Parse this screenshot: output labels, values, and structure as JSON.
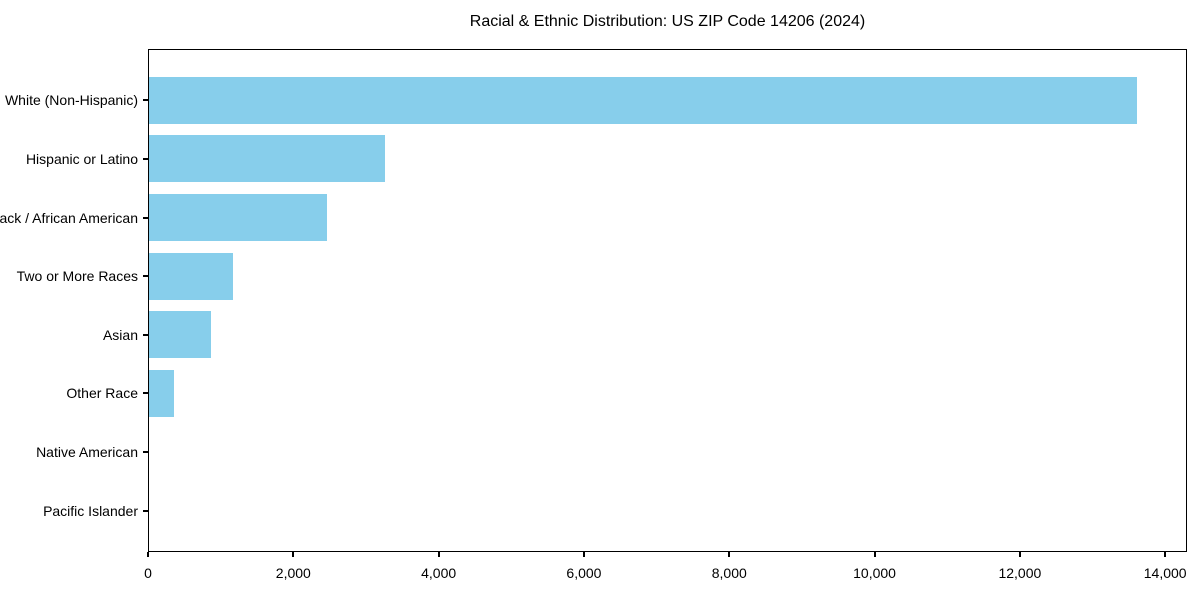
{
  "chart_data": {
    "type": "bar",
    "orientation": "horizontal",
    "title": "Racial & Ethnic Distribution: US ZIP Code 14206 (2024)",
    "categories": [
      "White (Non-Hispanic)",
      "Hispanic or Latino",
      "Black / African American",
      "Two or More Races",
      "Asian",
      "Other Race",
      "Native American",
      "Pacific Islander"
    ],
    "values": [
      13600,
      3250,
      2450,
      1150,
      850,
      350,
      0,
      0
    ],
    "xlabel": "",
    "ylabel": "",
    "xlim": [
      0,
      14300
    ],
    "xticks": {
      "values": [
        0,
        2000,
        4000,
        6000,
        8000,
        10000,
        12000,
        14000
      ],
      "labels": [
        "0",
        "2,000",
        "4,000",
        "6,000",
        "8,000",
        "10,000",
        "12,000",
        "14,000"
      ]
    },
    "grid": false,
    "legend": null,
    "bar_color": "#87CEEB",
    "axis_color": "#000000",
    "background_color": "#ffffff"
  }
}
